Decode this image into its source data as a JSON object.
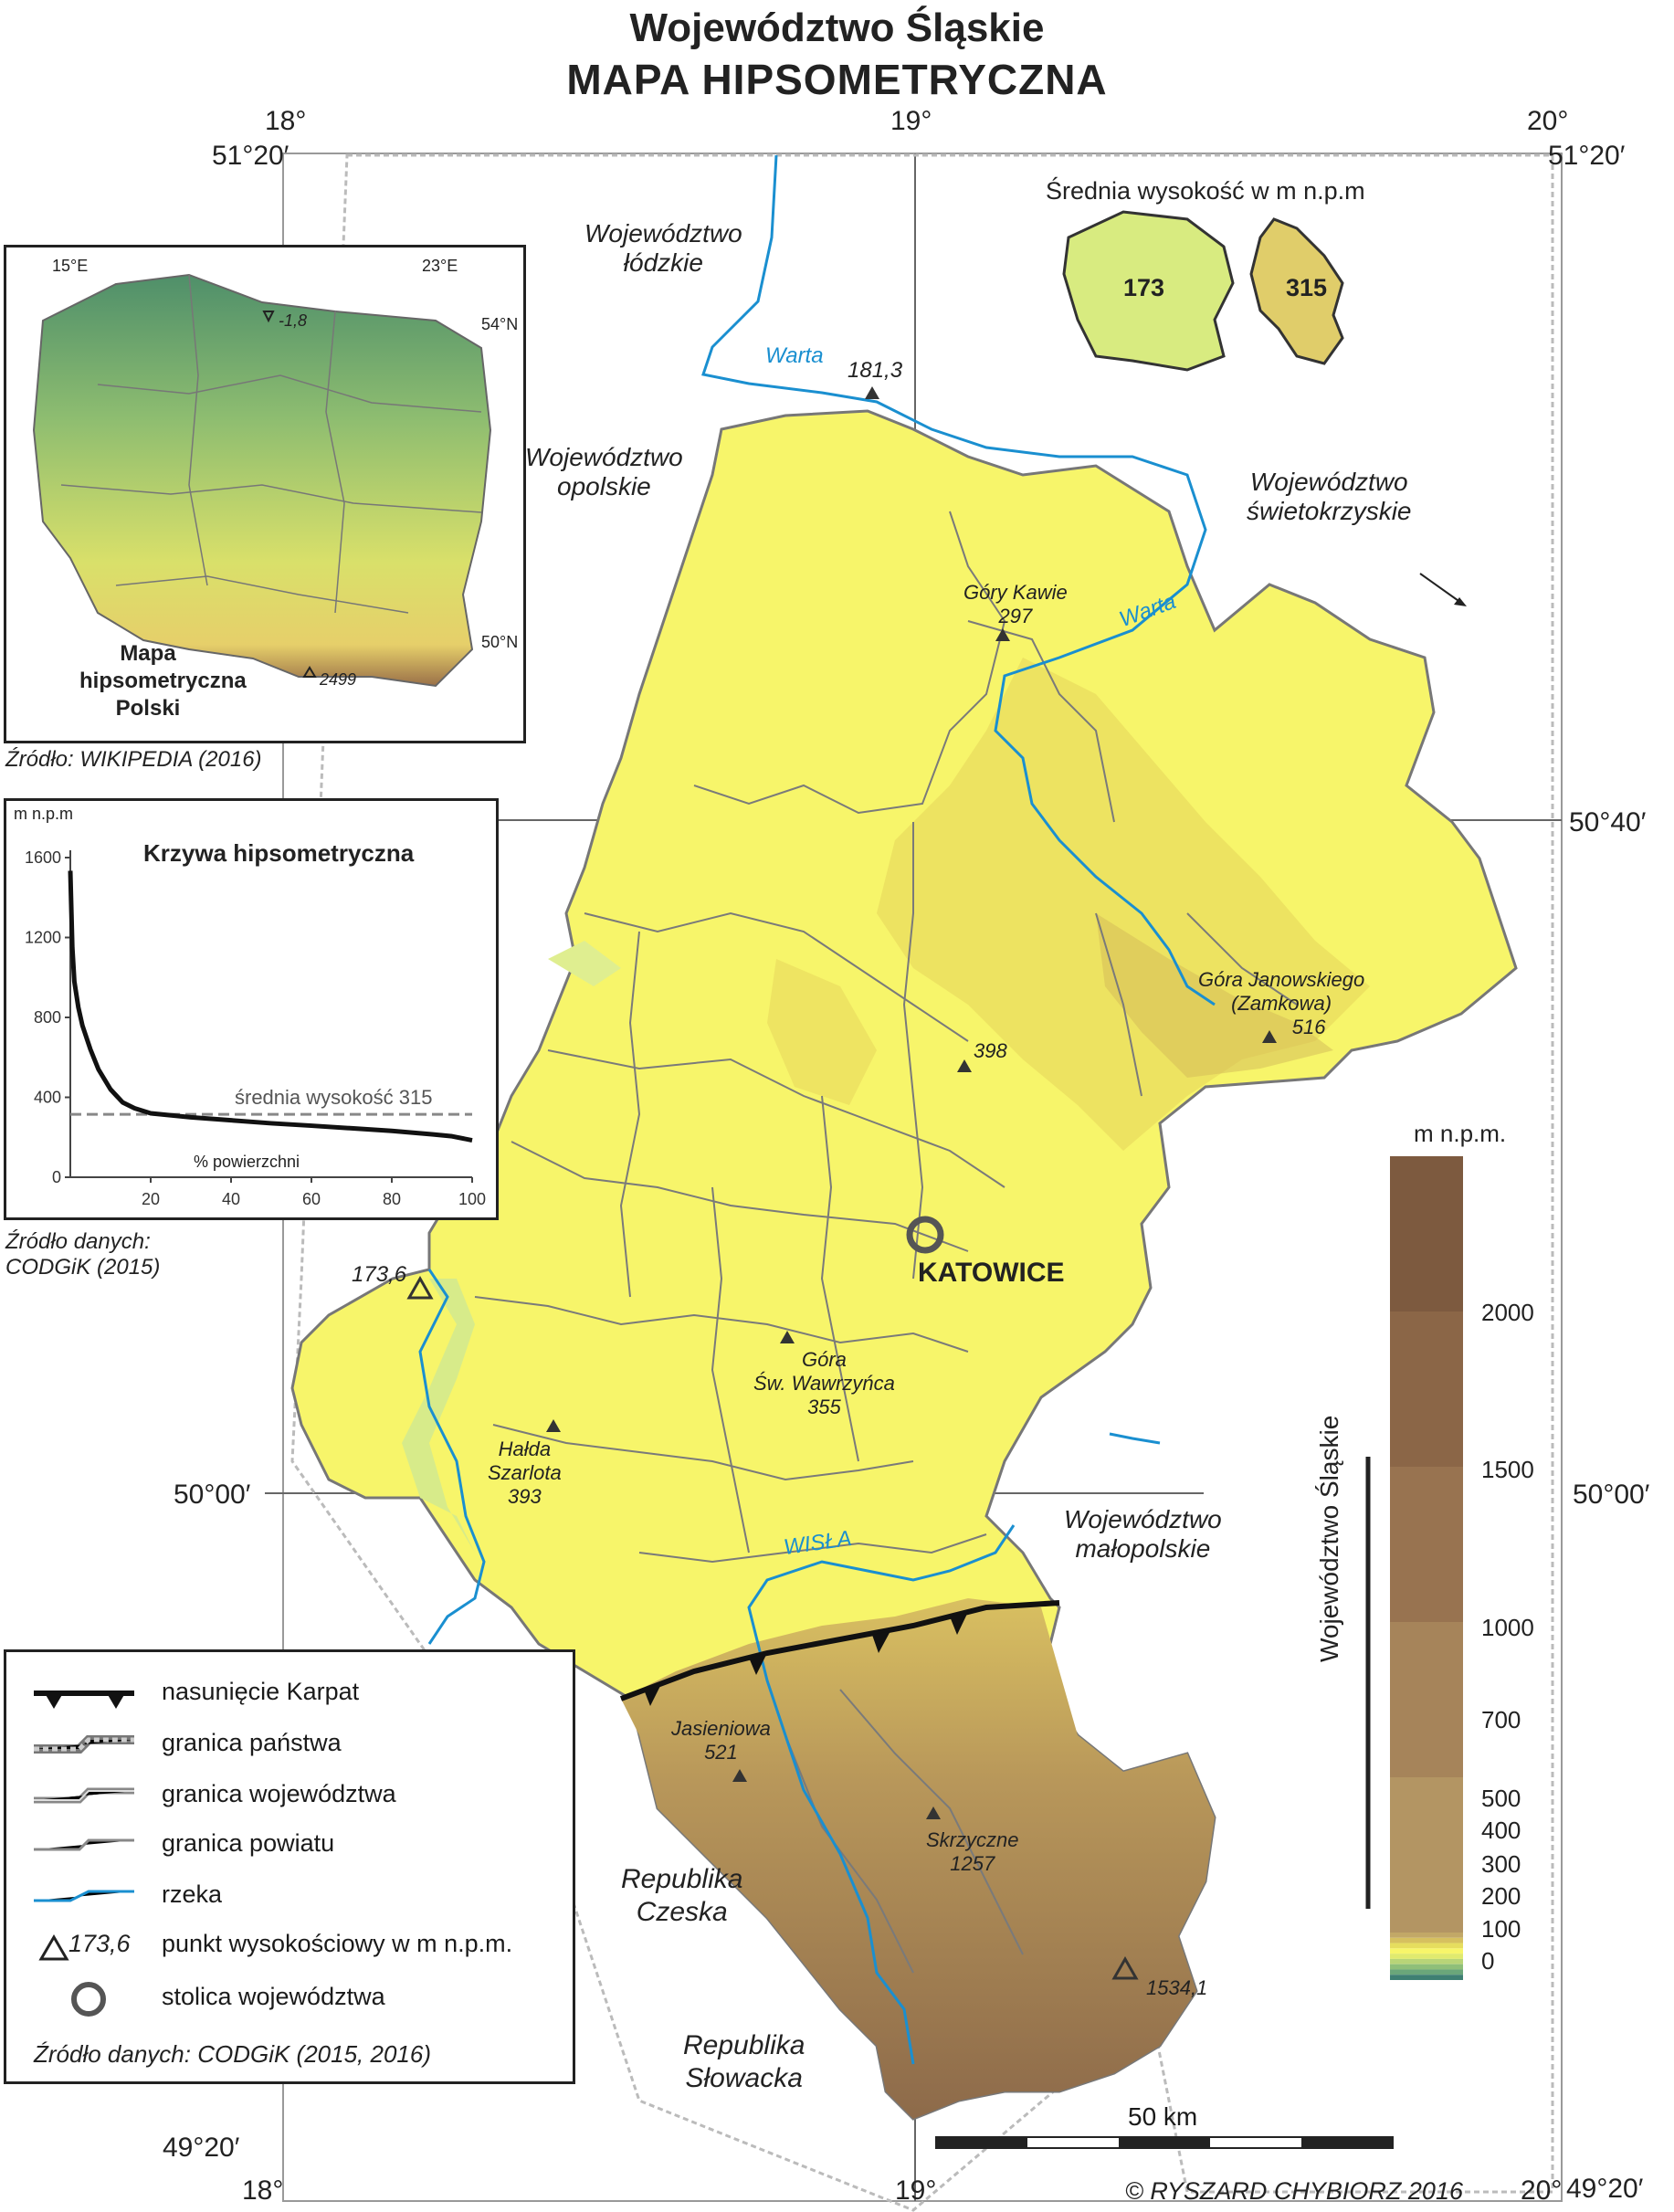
{
  "title": {
    "line1": "Województwo Śląskie",
    "line2": "MAPA  HIPSOMETRYCZNA"
  },
  "coordinates": {
    "lon_top": [
      "18°",
      "19°",
      "20°"
    ],
    "lon_bottom": [
      "18°",
      "19°",
      "20°"
    ],
    "lat_top_left": "51°20′",
    "lat_top_right": "51°20′",
    "lat_mid_right": "50°40′",
    "lat_50_left": "50°00′",
    "lat_50_right": "50°00′",
    "lat_bottom_left": "49°20′",
    "lat_bottom_right": "49°20′"
  },
  "neighbours": {
    "lodzkie": [
      "Województwo",
      "łódzkie"
    ],
    "opolskie": [
      "Województwo",
      "opolskie"
    ],
    "swietokrzyskie": [
      "Województwo",
      "świetokrzyskie"
    ],
    "malopolskie": [
      "Województwo",
      "małopolskie"
    ],
    "czechia": [
      "Republika",
      "Czeska"
    ],
    "slovakia": [
      "Republika",
      "Słowacka"
    ]
  },
  "rivers": {
    "warta_1": "Warta",
    "warta_2": "Warta",
    "wisla": "WISŁA"
  },
  "peaks": {
    "p181": "181,3",
    "gory_kawie": [
      "Góry Kawie",
      "297"
    ],
    "gora_janowskiego": [
      "Góra Janowskiego",
      "(Zamkowa)",
      "516"
    ],
    "p398": "398",
    "gora_wawrzynca": [
      "Góra",
      "Św. Wawrzyńca",
      "355"
    ],
    "halda": [
      "Hałda",
      "Szarlota",
      "393"
    ],
    "p173": "173,6",
    "jasieniowa": [
      "Jasieniowa",
      "521"
    ],
    "skrzyczne": [
      "Skrzyczne",
      "1257"
    ],
    "p1534": "1534,1"
  },
  "capital": "KATOWICE",
  "mean_height": {
    "title": "Średnia wysokość w m n.p.m",
    "poland": "173",
    "silesia": "315"
  },
  "inset_poland": {
    "label": [
      "Mapa",
      "hipsometryczna",
      "Polski"
    ],
    "lon_labels": [
      "15°E",
      "23°E"
    ],
    "lat_labels": [
      "54°N",
      "50°N"
    ],
    "low_point": "-1,8",
    "high_point": "2499",
    "source": "Źródło: WIKIPEDIA (2016)"
  },
  "hypsometric_curve": {
    "title": "Krzywa hipsometryczna",
    "y_unit": "m n.p.m",
    "x_label": "% powierzchni",
    "mean_label": "średnia wysokość 315",
    "source": [
      "Źródło danych:",
      "CODGiK (2015)"
    ],
    "y_ticks": [
      "1600",
      "1200",
      "800",
      "400",
      "0"
    ],
    "x_ticks": [
      "20",
      "40",
      "60",
      "80",
      "100"
    ]
  },
  "chart_data": {
    "type": "line",
    "title": "Krzywa hipsometryczna",
    "xlabel": "% powierzchni",
    "ylabel": "m n.p.m",
    "xlim": [
      0,
      100
    ],
    "ylim": [
      0,
      1600
    ],
    "series": [
      {
        "x": [
          0,
          0.5,
          1,
          2,
          3,
          5,
          7,
          10,
          13,
          16,
          20,
          30,
          40,
          50,
          60,
          70,
          80,
          90,
          95,
          100
        ],
        "y": [
          1534,
          1150,
          980,
          850,
          760,
          640,
          540,
          440,
          375,
          345,
          320,
          300,
          285,
          270,
          258,
          245,
          232,
          215,
          205,
          185
        ]
      }
    ],
    "mean_line": 315
  },
  "legend": {
    "items": [
      "nasunięcie Karpat",
      "granica państwa",
      "granica województwa",
      "granica powiatu",
      "rzeka",
      "punkt wysokościowy w m n.p.m.",
      "stolica województwa"
    ],
    "sample_point": "173,6",
    "source": "Źródło danych: CODGiK (2015, 2016)"
  },
  "elevation_scale": {
    "title": "m n.p.m.",
    "vertical_label": "Województwo Śląskie",
    "labels": [
      "2000",
      "1500",
      "1000",
      "700",
      "500",
      "400",
      "300",
      "200",
      "100",
      "0"
    ],
    "colors": [
      "#7d5a3f",
      "#8b6647",
      "#987350",
      "#a6845a",
      "#b39563",
      "#c2a867",
      "#d6c05f",
      "#e6dd5e",
      "#f7f56a",
      "#e0ea6e",
      "#b8d478",
      "#8fbf79",
      "#6aa67a",
      "#3e7f72"
    ]
  },
  "scale_bar": "50 km",
  "copyright": "© RYSZARD CHYBIORZ 2016"
}
